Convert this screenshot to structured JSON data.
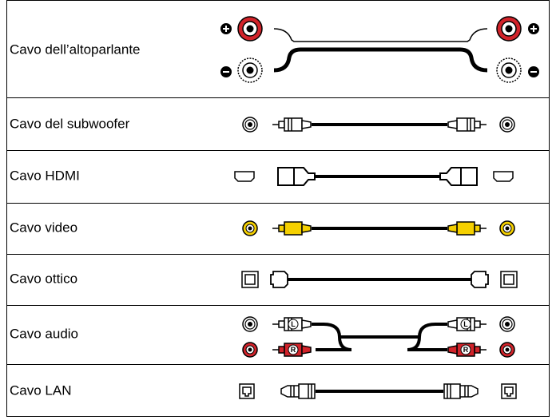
{
  "table": {
    "rows": [
      {
        "label": "Cavo dell’altoparlante"
      },
      {
        "label": "Cavo del subwoofer"
      },
      {
        "label": "Cavo HDMI"
      },
      {
        "label": "Cavo video"
      },
      {
        "label": "Cavo ottico"
      },
      {
        "label": "Cavo audio",
        "plug_labels": [
          "L",
          "R"
        ]
      },
      {
        "label": "Cavo LAN"
      }
    ]
  }
}
